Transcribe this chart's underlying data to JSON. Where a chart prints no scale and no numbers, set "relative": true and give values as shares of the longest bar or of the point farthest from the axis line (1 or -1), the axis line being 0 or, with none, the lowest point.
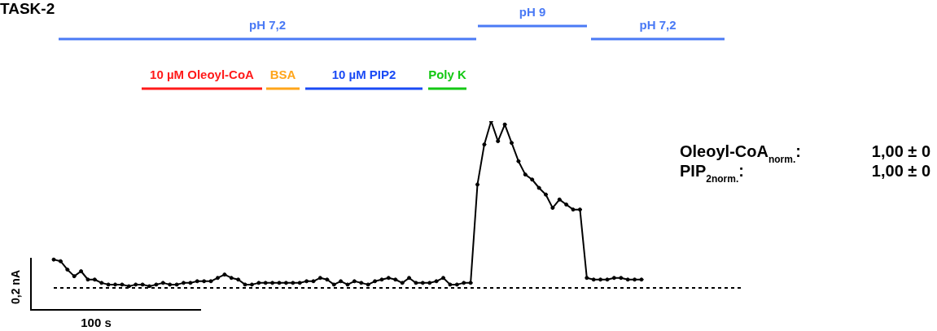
{
  "chart_data": {
    "type": "line",
    "title": "TASK-2",
    "relative": true,
    "grid": false,
    "legend": false,
    "marker": "circle",
    "line_style": "solid",
    "categories": [
      null,
      null,
      null,
      null,
      null,
      null,
      null,
      null,
      null,
      null,
      null,
      null,
      null,
      null,
      null,
      null,
      null,
      null,
      null,
      null,
      null,
      null,
      null,
      null,
      null,
      null,
      null,
      null,
      null,
      null,
      null,
      null,
      null,
      null,
      null,
      null,
      null,
      null,
      null,
      null,
      null,
      null,
      null,
      null,
      null,
      null,
      null,
      null,
      null,
      null,
      null,
      null,
      null,
      null,
      null,
      null,
      null,
      null,
      null,
      null,
      null,
      null,
      null,
      null,
      null,
      null,
      null,
      null,
      null,
      null,
      null,
      null,
      null,
      null,
      null,
      null,
      null,
      null,
      null,
      null,
      null,
      null,
      null,
      null,
      null,
      null,
      null
    ],
    "series": [
      {
        "color": "#000000",
        "values": [
          0.17,
          0.16,
          0.11,
          0.07,
          0.1,
          0.05,
          0.05,
          0.03,
          0.02,
          0.02,
          0.02,
          0.01,
          0.02,
          0.02,
          0.01,
          0.02,
          0.03,
          0.02,
          0.02,
          0.03,
          0.03,
          0.04,
          0.04,
          0.04,
          0.06,
          0.08,
          0.06,
          0.05,
          0.02,
          0.02,
          0.03,
          0.03,
          0.03,
          0.03,
          0.03,
          0.03,
          0.03,
          0.04,
          0.04,
          0.06,
          0.05,
          0.02,
          0.04,
          0.02,
          0.04,
          0.03,
          0.02,
          0.04,
          0.05,
          0.06,
          0.05,
          0.03,
          0.06,
          0.03,
          0.03,
          0.03,
          0.04,
          0.06,
          0.02,
          0.02,
          0.03,
          0.03,
          0.62,
          0.86,
          1,
          0.88,
          0.98,
          0.87,
          0.76,
          0.68,
          0.65,
          0.6,
          0.56,
          0.48,
          0.53,
          0.5,
          0.47,
          0.47,
          0.06,
          0.05,
          0.05,
          0.05,
          0.06,
          0.06,
          0.05,
          0.05,
          0.05
        ]
      }
    ],
    "annotations": [
      "pH 7,2",
      "pH 9",
      "pH 7,2",
      "10 µM Oleoyl-CoA",
      "BSA",
      "10 µM PIP2",
      "Poly K",
      "0,2 nA",
      "100 s",
      "Oleoyl-CoA$_{norm.}$: 1,00 ± 0",
      "PIP$_{2norm.}$: 1,00 ± 0"
    ]
  }
}
